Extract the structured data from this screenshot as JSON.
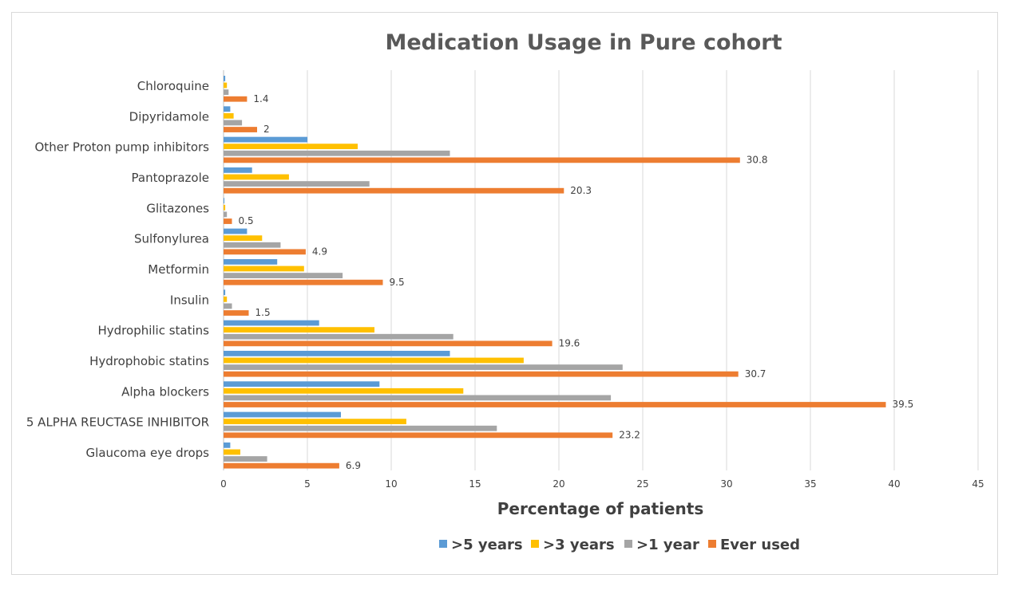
{
  "chart_data": {
    "type": "bar",
    "orientation": "horizontal",
    "title": "Medication Usage in Pure cohort",
    "xlabel": "Percentage of patients",
    "ylabel": "",
    "xlim": [
      0,
      45
    ],
    "x_ticks": [
      "0",
      "5",
      "10",
      "15",
      "20",
      "25",
      "30",
      "35",
      "40",
      "45"
    ],
    "grid": "vertical",
    "legend_position": "bottom",
    "categories": [
      "Chloroquine",
      "Dipyridamole",
      "Other Proton pump inhibitors",
      "Pantoprazole",
      "Glitazones",
      "Sulfonylurea",
      "Metformin",
      "Insulin",
      "Hydrophilic statins",
      "Hydrophobic statins",
      "Alpha blockers",
      "5 ALPHA REUCTASE INHIBITOR",
      "Glaucoma eye drops"
    ],
    "series": [
      {
        "name": ">5 years",
        "color": "#5b9bd5",
        "values": [
          0.1,
          0.4,
          5.0,
          1.7,
          0.05,
          1.4,
          3.2,
          0.1,
          5.7,
          13.5,
          9.3,
          7.0,
          0.4
        ]
      },
      {
        "name": ">3 years",
        "color": "#ffc000",
        "values": [
          0.2,
          0.6,
          8.0,
          3.9,
          0.1,
          2.3,
          4.8,
          0.2,
          9.0,
          17.9,
          14.3,
          10.9,
          1.0
        ]
      },
      {
        "name": ">1 year",
        "color": "#a5a5a5",
        "values": [
          0.3,
          1.1,
          13.5,
          8.7,
          0.2,
          3.4,
          7.1,
          0.5,
          13.7,
          23.8,
          23.1,
          16.3,
          2.6
        ]
      },
      {
        "name": "Ever used",
        "color": "#ed7d31",
        "values": [
          1.4,
          2,
          30.8,
          20.3,
          0.5,
          4.9,
          9.5,
          1.5,
          19.6,
          30.7,
          39.5,
          23.2,
          6.9
        ]
      }
    ],
    "data_labels": [
      "1.4",
      "2",
      "30.8",
      "20.3",
      "0.5",
      "4.9",
      "9.5",
      "1.5",
      "19.6",
      "30.7",
      "39.5",
      "23.2",
      "6.9"
    ]
  }
}
